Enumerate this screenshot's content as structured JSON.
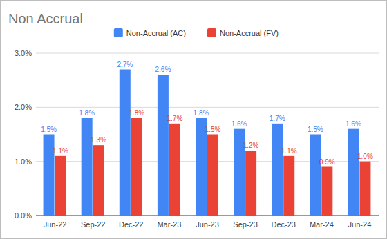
{
  "chart_data": {
    "type": "bar",
    "title": "Non Accrual",
    "categories": [
      "Jun-22",
      "Sep-22",
      "Dec-22",
      "Mar-23",
      "Jun-23",
      "Sep-23",
      "Dec-23",
      "Mar-24",
      "Jun-24"
    ],
    "series": [
      {
        "name": "Non-Accrual (AC)",
        "color": "#4285f4",
        "values": [
          1.5,
          1.8,
          2.7,
          2.6,
          1.8,
          1.6,
          1.7,
          1.5,
          1.6
        ],
        "value_labels": [
          "1.5%",
          "1.8%",
          "2.7%",
          "2.6%",
          "1.8%",
          "1.6%",
          "1.7%",
          "1.5%",
          "1.6%"
        ]
      },
      {
        "name": "Non-Accrual (FV)",
        "color": "#ea4335",
        "values": [
          1.1,
          1.3,
          1.8,
          1.7,
          1.5,
          1.2,
          1.1,
          0.9,
          1.0
        ],
        "value_labels": [
          "1.1%",
          "1.3%",
          "1.8%",
          "1.7%",
          "1.5%",
          "1.2%",
          "1.1%",
          "0.9%",
          "1.0%"
        ]
      }
    ],
    "ylim": [
      0,
      3
    ],
    "yticks": [
      {
        "value": 0,
        "label": "0.0%"
      },
      {
        "value": 1,
        "label": "1.0%"
      },
      {
        "value": 2,
        "label": "2.0%"
      },
      {
        "value": 3,
        "label": "3.0%"
      }
    ],
    "grid": true,
    "legend": "top",
    "data_labels": true
  }
}
